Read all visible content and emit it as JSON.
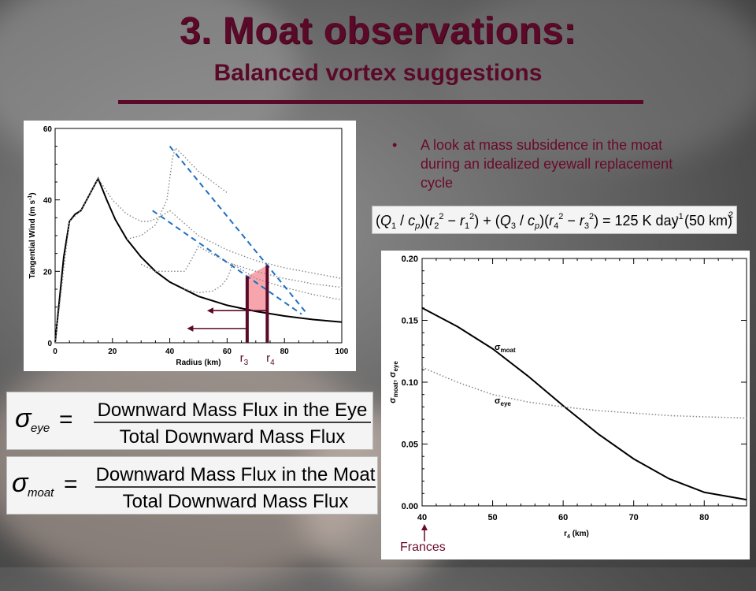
{
  "slide": {
    "title": "3. Moat observations:",
    "subtitle": "Balanced vortex suggestions",
    "bullet": "A look at mass subsidence in the moat during an idealized eyewall replacement cycle",
    "frances_label": "Frances",
    "colors": {
      "title": "#5a0a28",
      "bullet": "#6a0a2a",
      "dashed": "#1f6fc4",
      "fill": "#f7a5ad"
    }
  },
  "equations": {
    "balance": {
      "rhs": "= 125 K day",
      "exp": "-1",
      "tail": "(50 km)",
      "sq": "2"
    },
    "sigma_eye": {
      "numerator": "Downward  Mass Flux in the Eye",
      "denominator": "Total Downward Mass Flux",
      "sub": "eye"
    },
    "sigma_moat": {
      "numerator": "Downward  Mass Flux in the Moat",
      "denominator": "Total Downward Mass Flux",
      "sub": "moat"
    }
  },
  "chart_data": [
    {
      "type": "line",
      "xlabel": "Radius (km)",
      "ylabel": "Tangential Wind (m s",
      "ylabel_exp": "-1",
      "ylabel_close": ")",
      "xlim": [
        0,
        100
      ],
      "ylim": [
        0,
        60
      ],
      "xticks": [
        "0",
        "20",
        "40",
        "60",
        "80",
        "100"
      ],
      "yticks": [
        "0",
        "20",
        "40",
        "60"
      ],
      "annotations": [
        "r",
        "3",
        "r",
        "4"
      ],
      "series": [
        {
          "style": "solid",
          "x": [
            0,
            1,
            2,
            3,
            5,
            7,
            9,
            11,
            13,
            15,
            18,
            21,
            25,
            30,
            35,
            40,
            50,
            60,
            70,
            80,
            90,
            100
          ],
          "y": [
            0,
            8,
            16,
            24,
            34,
            36,
            37,
            40,
            43,
            46,
            40,
            34.5,
            29,
            24,
            20,
            17,
            13,
            10.5,
            8.8,
            7.5,
            6.5,
            5.8
          ]
        },
        {
          "style": "dotted",
          "x": [
            0,
            5,
            9,
            15,
            20,
            25,
            30,
            33,
            36,
            38,
            40,
            50,
            60,
            70,
            80,
            90,
            100
          ],
          "y": [
            0,
            34,
            37,
            46,
            40,
            36,
            34,
            34,
            35,
            36,
            37,
            30,
            26,
            23,
            21,
            19.5,
            18
          ]
        },
        {
          "style": "dotted",
          "x": [
            30,
            35,
            40,
            45,
            46,
            48,
            50,
            60,
            70,
            80,
            90,
            100
          ],
          "y": [
            22,
            20,
            20,
            20,
            21,
            24,
            27,
            22.5,
            20,
            18,
            16.5,
            15.5
          ]
        },
        {
          "style": "dotted",
          "x": [
            45,
            50,
            55,
            58,
            60,
            62,
            70,
            80,
            90,
            100
          ],
          "y": [
            15,
            14,
            14.5,
            16,
            18,
            22,
            18,
            15.5,
            13.5,
            12
          ]
        },
        {
          "style": "dotted",
          "x": [
            25,
            30,
            35,
            39,
            40,
            41,
            42,
            44,
            50,
            60
          ],
          "y": [
            29,
            30,
            33,
            40,
            46,
            52,
            54.5,
            53,
            48,
            42
          ]
        }
      ],
      "dashed_x": [
        [
          40,
          88
        ],
        [
          34,
          86
        ]
      ],
      "dashed_y": [
        [
          55,
          8
        ],
        [
          37,
          8
        ]
      ],
      "shaded_x": [
        67,
        74
      ],
      "arrows_y": [
        9,
        4
      ]
    },
    {
      "type": "line",
      "xlabel": "r",
      "xlabel_sub": "4",
      "xlabel_unit": " (km)",
      "ylabel": "σ",
      "xlim": [
        40,
        86
      ],
      "ylim": [
        0,
        0.2
      ],
      "xticks": [
        "40",
        "50",
        "60",
        "70",
        "80"
      ],
      "yticks": [
        "0.00",
        "0.05",
        "0.10",
        "0.15",
        "0.20"
      ],
      "series": [
        {
          "name": "σ",
          "sub": "moat",
          "style": "solid",
          "x": [
            40,
            45,
            50,
            55,
            60,
            65,
            70,
            75,
            80,
            86
          ],
          "y": [
            0.16,
            0.145,
            0.127,
            0.105,
            0.081,
            0.058,
            0.038,
            0.022,
            0.011,
            0.005
          ]
        },
        {
          "name": "σ",
          "sub": "eye",
          "style": "dotted",
          "x": [
            40,
            45,
            50,
            55,
            60,
            65,
            70,
            75,
            80,
            86
          ],
          "y": [
            0.112,
            0.1,
            0.09,
            0.084,
            0.08,
            0.077,
            0.075,
            0.073,
            0.072,
            0.071
          ]
        }
      ]
    }
  ]
}
